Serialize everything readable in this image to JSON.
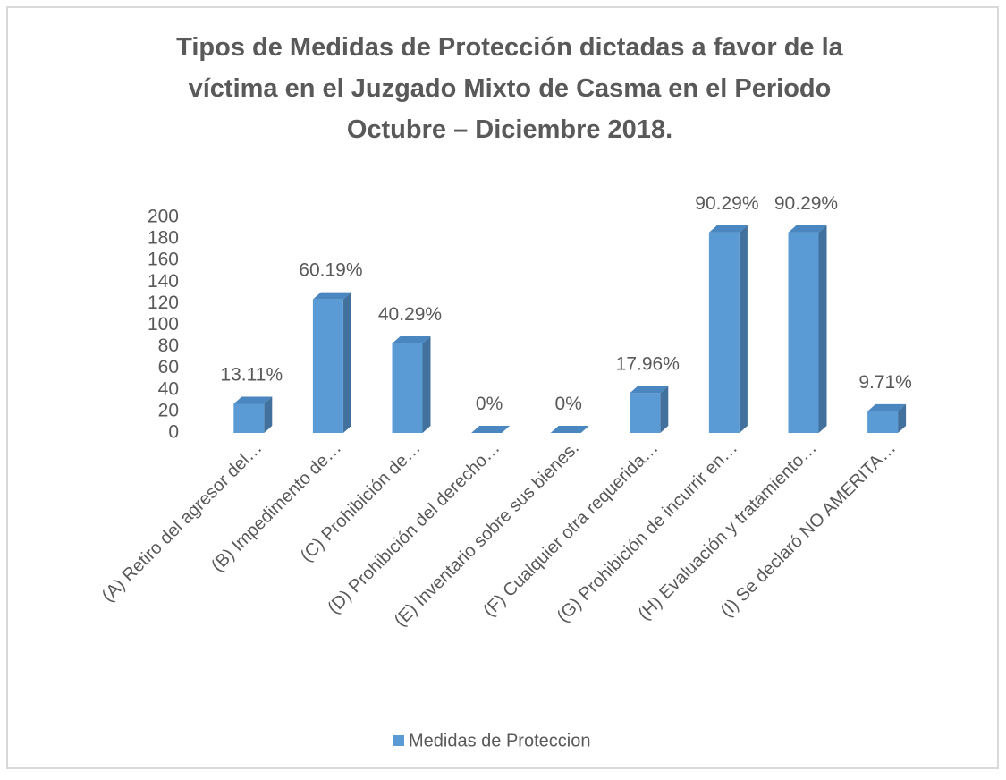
{
  "chart_data": {
    "type": "bar3d",
    "title": [
      "Tipos de Medidas de Protección dictadas a favor de la",
      "víctima  en el Juzgado Mixto de Casma en el Periodo",
      "Octubre – Diciembre  2018."
    ],
    "categories": [
      "(A) Retiro del agresor del…",
      "(B) Impedimento de…",
      "(C) Prohibición de…",
      "(D) Prohibición del derecho…",
      "(E) Inventario sobre sus bienes.",
      "(F) Cualquier otra requerida…",
      "(G) Prohibición de incurrir en…",
      "(H) Evaluación y tratamiento…",
      "(I) Se declaró NO AMERITA…"
    ],
    "series": [
      {
        "name": "Medidas de Proteccion",
        "color": "#5b9bd5",
        "values": [
          27,
          124,
          83,
          0,
          0,
          37,
          186,
          186,
          20
        ],
        "percent_labels": [
          "13.11%",
          "60.19%",
          "40.29%",
          "0%",
          "0%",
          "17.96%",
          "90.29%",
          "90.29%",
          "9.71%"
        ]
      }
    ],
    "ylim": [
      0,
      200
    ],
    "yticks": [
      0,
      20,
      40,
      60,
      80,
      100,
      120,
      140,
      160,
      180,
      200
    ],
    "legend": "bottom"
  }
}
